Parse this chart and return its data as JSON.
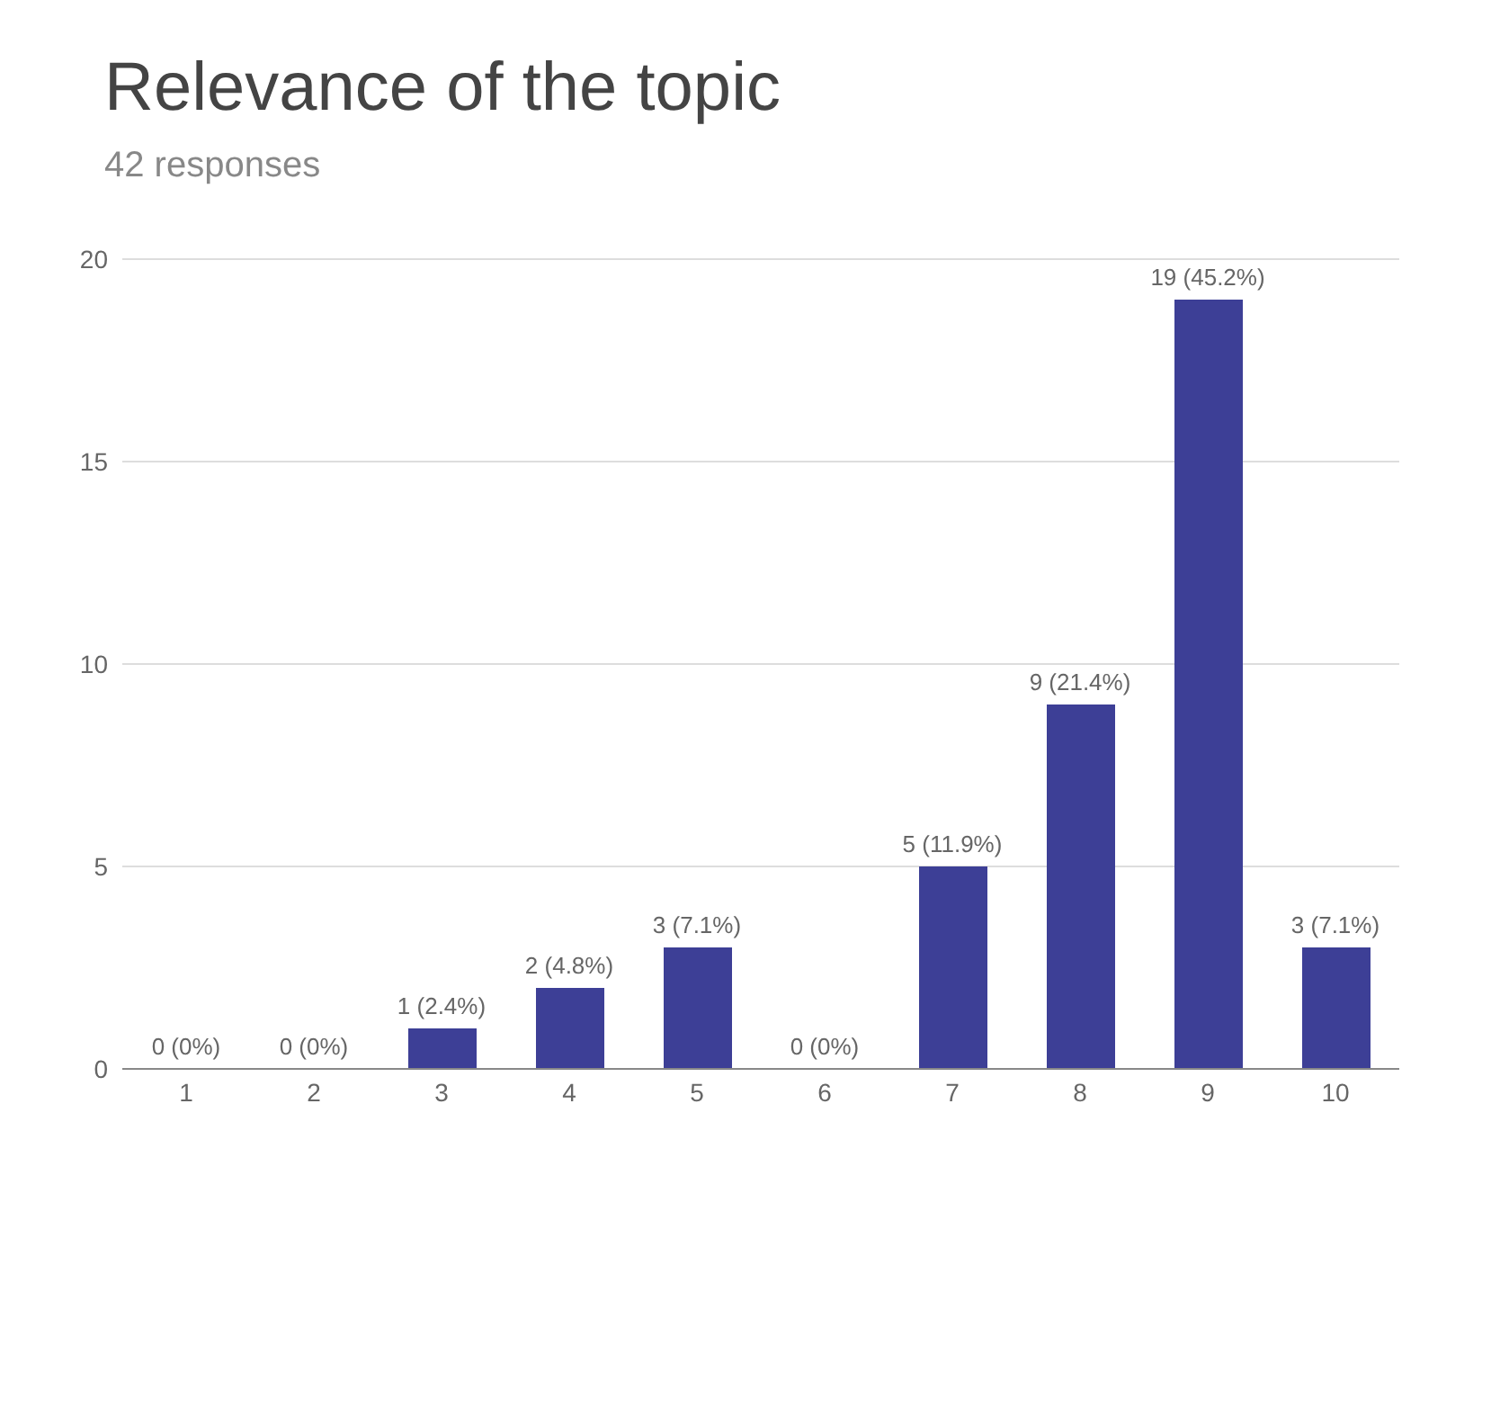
{
  "chart_data": {
    "type": "bar",
    "title": "Relevance of the topic",
    "subtitle": "42 responses",
    "categories": [
      "1",
      "2",
      "3",
      "4",
      "5",
      "6",
      "7",
      "8",
      "9",
      "10"
    ],
    "values": [
      0,
      0,
      1,
      2,
      3,
      0,
      5,
      9,
      19,
      3
    ],
    "value_labels": [
      "0 (0%)",
      "0 (0%)",
      "1 (2.4%)",
      "2 (4.8%)",
      "3 (7.1%)",
      "0 (0%)",
      "5 (11.9%)",
      "9 (21.4%)",
      "19 (45.2%)",
      "3 (7.1%)"
    ],
    "color": "#3d3f96",
    "ylim": [
      0,
      20
    ],
    "yticks": [
      0,
      5,
      10,
      15,
      20
    ],
    "grid": "y",
    "legend": false
  }
}
